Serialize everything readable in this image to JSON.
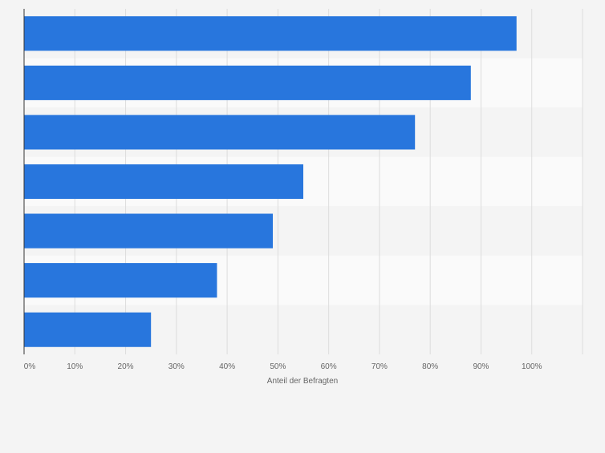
{
  "chart_data": {
    "type": "bar",
    "orientation": "horizontal",
    "title": "",
    "xlabel": "Anteil der Befragten",
    "ylabel": "",
    "categories": [
      "",
      "",
      "",
      "",
      "",
      "",
      ""
    ],
    "values": [
      97,
      88,
      77,
      55,
      49,
      38,
      25
    ],
    "xlim": [
      0,
      110
    ],
    "x_ticks": [
      0,
      10,
      20,
      30,
      40,
      50,
      60,
      70,
      80,
      90,
      100
    ],
    "tick_suffix": "%",
    "grid": true,
    "legend": "none",
    "colors": {
      "bar": "#2876dd",
      "page_background": "#f4f4f4",
      "band_light": "#fafafa",
      "band_dark": "#f4f4f4",
      "gridline": "#dddddd",
      "axis": "#333333",
      "tick_text": "#666666"
    }
  }
}
